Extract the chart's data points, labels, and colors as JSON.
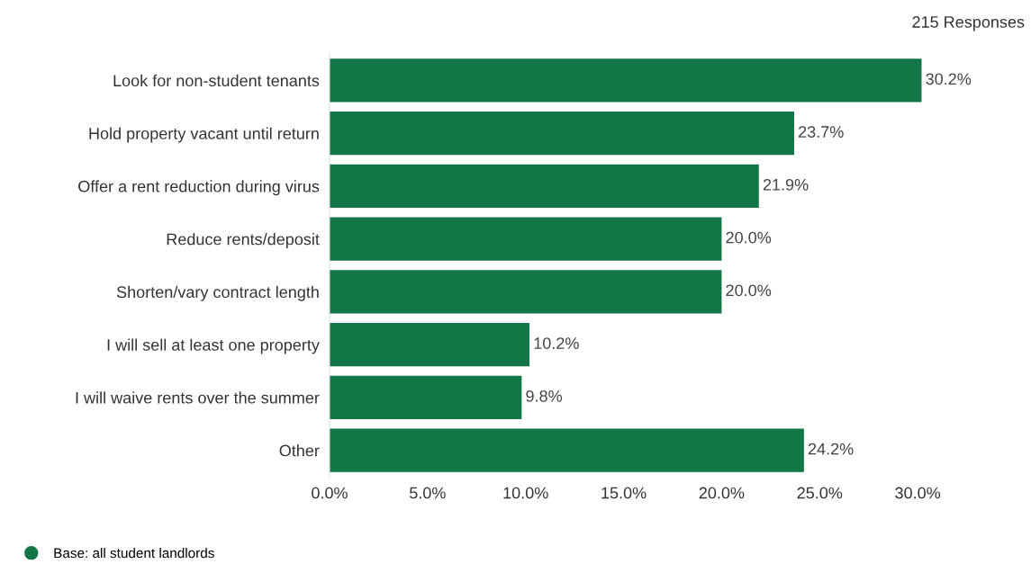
{
  "chart_data": {
    "type": "bar",
    "orientation": "horizontal",
    "categories": [
      "Look for non-student tenants",
      "Hold property vacant until return",
      "Offer a rent reduction during virus",
      "Reduce rents/deposit",
      "Shorten/vary contract length",
      "I will sell at least one property",
      "I will waive rents over the summer",
      "Other"
    ],
    "series": [
      {
        "name": "Base: all student landlords",
        "color": "#127646",
        "values": [
          30.2,
          23.7,
          21.9,
          20.0,
          20.0,
          10.2,
          9.8,
          24.2
        ],
        "value_labels": [
          "30.2%",
          "23.7%",
          "21.9%",
          "20.0%",
          "20.0%",
          "10.2%",
          "9.8%",
          "24.2%"
        ]
      }
    ],
    "xlim": [
      0,
      30.5
    ],
    "xticks": [
      {
        "value": 0,
        "label": "0.0%"
      },
      {
        "value": 5,
        "label": "5.0%"
      },
      {
        "value": 10,
        "label": "10.0%"
      },
      {
        "value": 15,
        "label": "15.0%"
      },
      {
        "value": 20,
        "label": "20.0%"
      },
      {
        "value": 25,
        "label": "25.0%"
      },
      {
        "value": 30,
        "label": "30.0%"
      }
    ],
    "annotations": [
      "215 Responses"
    ],
    "legend": "bottom left",
    "grid": false
  }
}
